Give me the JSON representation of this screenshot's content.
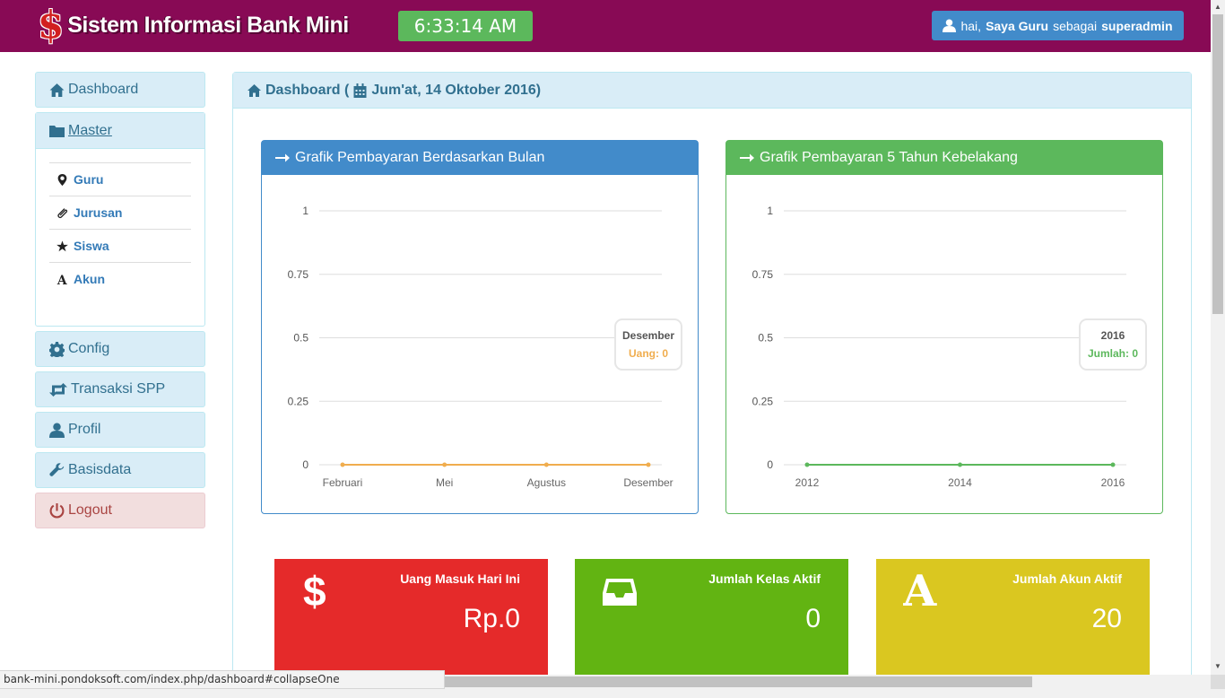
{
  "header": {
    "brand_icon": "$",
    "brand_title": "Sistem Informasi Bank Mini",
    "clock": "6:33:14 AM",
    "user_greeting": "hai,",
    "user_name": "Saya Guru",
    "user_mid": "sebagai",
    "user_role": "superadmin"
  },
  "sidebar": {
    "dashboard": "Dashboard",
    "master": "Master",
    "master_items": [
      {
        "label": "Guru",
        "icon": "map-marker-icon"
      },
      {
        "label": "Jurusan",
        "icon": "paperclip-icon"
      },
      {
        "label": "Siswa",
        "icon": "star-icon"
      },
      {
        "label": "Akun",
        "icon": "font-icon"
      }
    ],
    "config": "Config",
    "transaksi": "Transaksi SPP",
    "profil": "Profil",
    "basisdata": "Basisdata",
    "logout": "Logout"
  },
  "main": {
    "title": "Dashboard (",
    "date": "Jum'at, 14 Oktober 2016)"
  },
  "chart_data": [
    {
      "type": "line",
      "title": "Grafik Pembayaran Berdasarkan Bulan",
      "categories": [
        "Februari",
        "Mei",
        "Agustus",
        "Desember"
      ],
      "series": [
        {
          "name": "Uang",
          "values": [
            0,
            0,
            0,
            0
          ]
        }
      ],
      "y_ticks": [
        "0",
        "0.25",
        "0.5",
        "0.75",
        "1"
      ],
      "ylim": [
        0,
        1
      ],
      "grid": true,
      "tooltip": {
        "title": "Desember",
        "label": "Uang: 0"
      },
      "color": "#f0ad4e"
    },
    {
      "type": "line",
      "title": "Grafik Pembayaran 5 Tahun Kebelakang",
      "categories": [
        "2012",
        "2014",
        "2016"
      ],
      "series": [
        {
          "name": "Jumlah",
          "values": [
            0,
            0,
            0
          ]
        }
      ],
      "y_ticks": [
        "0",
        "0.25",
        "0.5",
        "0.75",
        "1"
      ],
      "ylim": [
        0,
        1
      ],
      "grid": true,
      "tooltip": {
        "title": "2016",
        "label": "Jumlah: 0"
      },
      "color": "#5cb85c"
    }
  ],
  "stats": [
    {
      "label": "Uang Masuk Hari Ini",
      "value": "Rp.0",
      "icon": "dollar-icon",
      "color": "#e52a2a"
    },
    {
      "label": "Jumlah Kelas Aktif",
      "value": "0",
      "icon": "inbox-icon",
      "color": "#62b412"
    },
    {
      "label": "Jumlah Akun Aktif",
      "value": "20",
      "icon": "font-icon",
      "color": "#dac720"
    }
  ],
  "status_url": "bank-mini.pondoksoft.com/index.php/dashboard#collapseOne"
}
